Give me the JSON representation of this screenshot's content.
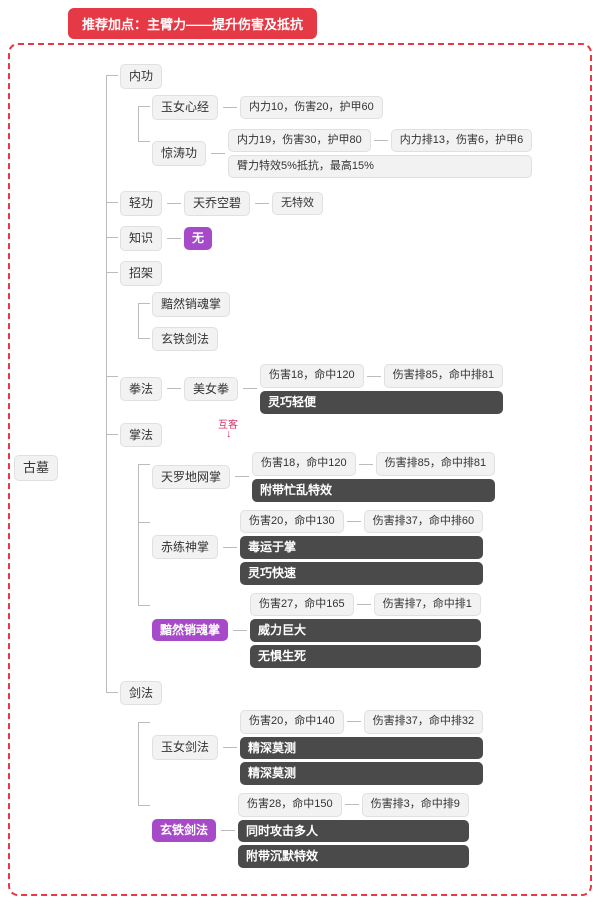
{
  "header": "推荐加点：主臂力——提升伤害及抵抗",
  "root": "古墓",
  "colors": {
    "accent_red": "#e63946",
    "purple": "#a64ac9",
    "dark": "#4a4a4a",
    "plain_bg": "#f2f2f2",
    "plain_border": "#e0e0e0",
    "connector": "#bbbbbb"
  },
  "c1": {
    "label": "内功",
    "a": {
      "name": "玉女心经",
      "stat": "内力10，伤害20，护甲60"
    },
    "b": {
      "name": "惊涛功",
      "stat1": "内力19，伤害30，护甲80",
      "stat2": "内力排13，伤害6，护甲6",
      "stat3": "臂力特效5%抵抗，最高15%"
    }
  },
  "c2": {
    "label": "轻功",
    "name": "天乔空碧",
    "stat": "无特效"
  },
  "c3": {
    "label": "知识",
    "val": "无"
  },
  "c4": {
    "label": "招架",
    "a": "黯然销魂掌",
    "b": "玄铁剑法"
  },
  "c5": {
    "label": "拳法",
    "name": "美女拳",
    "stat1": "伤害18，命中120",
    "stat2": "伤害排85，命中排81",
    "tag": "灵巧轻便",
    "annot": "互客"
  },
  "c6": {
    "label": "掌法",
    "a": {
      "name": "天罗地网掌",
      "stat1": "伤害18，命中120",
      "stat2": "伤害排85，命中排81",
      "tag": "附带忙乱特效"
    },
    "b": {
      "name": "赤练神掌",
      "stat1": "伤害20，命中130",
      "stat2": "伤害排37，命中排60",
      "tag1": "毒运于掌",
      "tag2": "灵巧快速"
    },
    "c": {
      "name": "黯然销魂掌",
      "stat1": "伤害27，命中165",
      "stat2": "伤害排7，命中排1",
      "tag1": "威力巨大",
      "tag2": "无惧生死"
    }
  },
  "c7": {
    "label": "剑法",
    "a": {
      "name": "玉女剑法",
      "stat1": "伤害20，命中140",
      "stat2": "伤害排37，命中排32",
      "tag1": "精深莫测",
      "tag2": "精深莫测"
    },
    "b": {
      "name": "玄铁剑法",
      "stat1": "伤害28，命中150",
      "stat2": "伤害排3，命中排9",
      "tag1": "同时攻击多人",
      "tag2": "附带沉默特效"
    }
  }
}
